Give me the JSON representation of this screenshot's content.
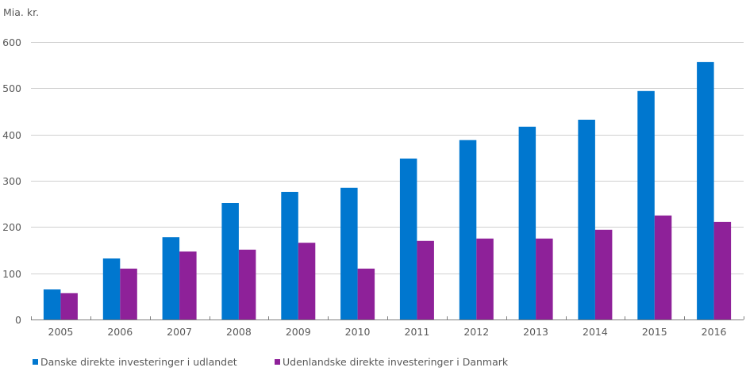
{
  "chart_data": {
    "type": "bar",
    "title": "",
    "unit_label": "Mia. kr.",
    "xlabel": "",
    "ylabel": "Mia. kr.",
    "ylim": [
      0,
      600
    ],
    "yticks": [
      0,
      100,
      200,
      300,
      400,
      500,
      600
    ],
    "ytick_labels": [
      "0",
      "100",
      "200",
      "300",
      "400",
      "500",
      "600"
    ],
    "grid": true,
    "legend_position": "bottom-left",
    "categories": [
      "2005",
      "2006",
      "2007",
      "2008",
      "2009",
      "2010",
      "2011",
      "2012",
      "2013",
      "2014",
      "2015",
      "2016"
    ],
    "series": [
      {
        "name": "Danske direkte investeringer i udlandet",
        "color": "#0077CF",
        "values": [
          65,
          132,
          178,
          252,
          276,
          285,
          348,
          388,
          417,
          432,
          494,
          557
        ]
      },
      {
        "name": "Udenlandske direkte investeringer i Danmark",
        "color": "#8E2199",
        "values": [
          57,
          110,
          147,
          151,
          166,
          110,
          170,
          175,
          175,
          194,
          225,
          211
        ]
      }
    ]
  }
}
